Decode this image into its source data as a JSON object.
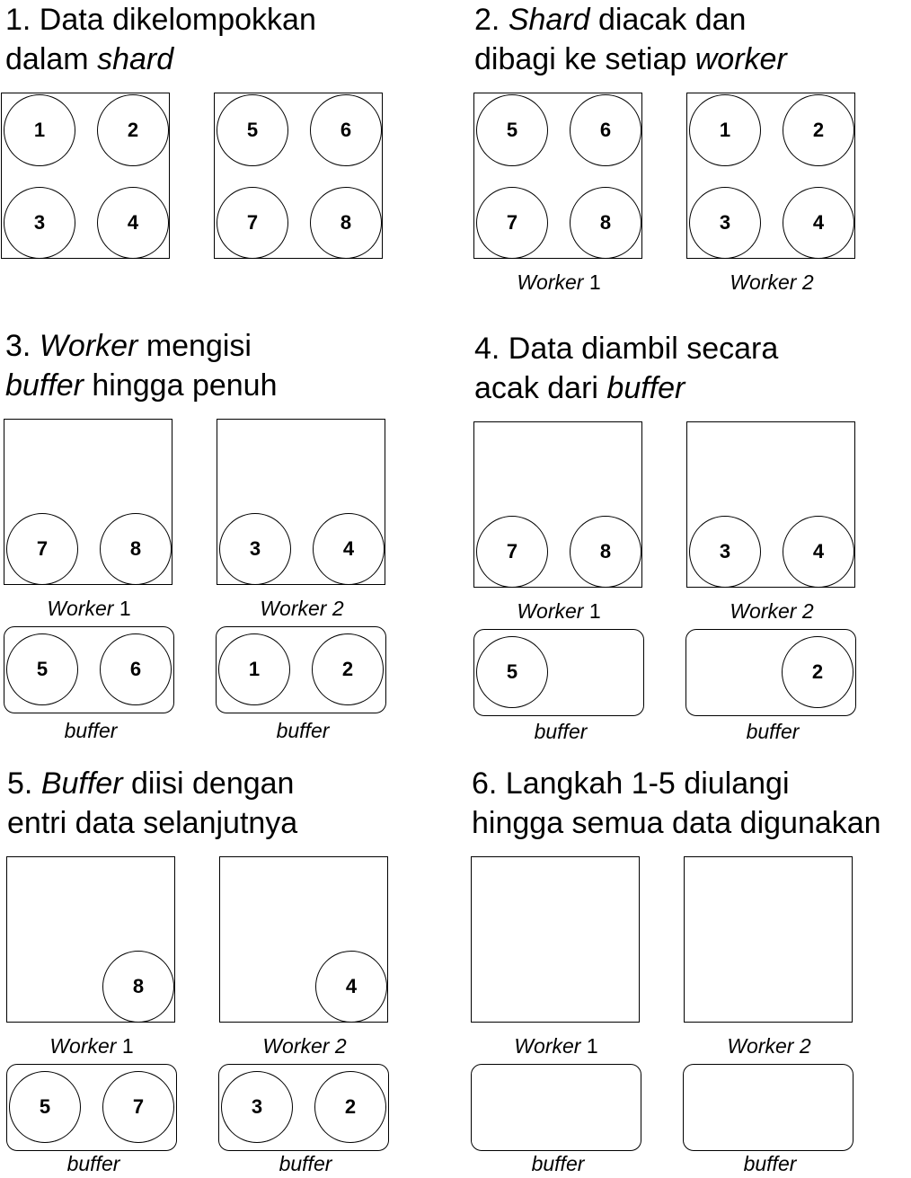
{
  "steps": [
    {
      "title": [
        {
          "t": "1. Data dikelompokkan",
          "i": false
        },
        {
          "br": true
        },
        {
          "t": "dalam ",
          "i": false
        },
        {
          "t": "shard",
          "i": true
        }
      ],
      "boxes": [
        [
          "1",
          "2",
          "3",
          "4"
        ],
        [
          "5",
          "6",
          "7",
          "8"
        ]
      ],
      "workerLabels": [],
      "buffers": [],
      "bufferLabel": ""
    },
    {
      "title": [
        {
          "t": "2. ",
          "i": false
        },
        {
          "t": "Shard",
          "i": true
        },
        {
          "t": " diacak dan",
          "i": false
        },
        {
          "br": true
        },
        {
          "t": "dibagi ke setiap ",
          "i": false
        },
        {
          "t": "worker",
          "i": true
        }
      ],
      "boxes": [
        [
          "5",
          "6",
          "7",
          "8"
        ],
        [
          "1",
          "2",
          "3",
          "4"
        ]
      ],
      "workerLabels": [
        [
          {
            "t": "Worker",
            "i": true
          },
          {
            "t": " 1",
            "i": false
          }
        ],
        [
          {
            "t": "Worker 2",
            "i": true
          }
        ]
      ],
      "buffers": [],
      "bufferLabel": ""
    },
    {
      "title": [
        {
          "t": "3. ",
          "i": false
        },
        {
          "t": "Worker",
          "i": true
        },
        {
          "t": " mengisi",
          "i": false
        },
        {
          "br": true
        },
        {
          "t": "buffer",
          "i": true
        },
        {
          "t": " hingga penuh",
          "i": false
        }
      ],
      "boxes": [
        [
          "",
          "",
          "7",
          "8"
        ],
        [
          "",
          "",
          "3",
          "4"
        ]
      ],
      "workerLabels": [
        [
          {
            "t": "Worker",
            "i": true
          },
          {
            "t": " 1",
            "i": false
          }
        ],
        [
          {
            "t": "Worker 2",
            "i": true
          }
        ]
      ],
      "buffers": [
        [
          "5",
          "6"
        ],
        [
          "1",
          "2"
        ]
      ],
      "bufferLabel": "buffer"
    },
    {
      "title": [
        {
          "t": "4. Data diambil secara",
          "i": false
        },
        {
          "br": true
        },
        {
          "t": "acak dari ",
          "i": false
        },
        {
          "t": "buffer",
          "i": true
        }
      ],
      "boxes": [
        [
          "",
          "",
          "7",
          "8"
        ],
        [
          "",
          "",
          "3",
          "4"
        ]
      ],
      "workerLabels": [
        [
          {
            "t": "Worker",
            "i": true
          },
          {
            "t": " 1",
            "i": false
          }
        ],
        [
          {
            "t": "Worker 2",
            "i": true
          }
        ]
      ],
      "buffers": [
        [
          "5",
          ""
        ],
        [
          "",
          "2"
        ]
      ],
      "bufferLabel": "buffer"
    },
    {
      "title": [
        {
          "t": "5. ",
          "i": false
        },
        {
          "t": "Buffer",
          "i": true
        },
        {
          "t": " diisi dengan",
          "i": false
        },
        {
          "br": true
        },
        {
          "t": "entri data selanjutnya",
          "i": false
        }
      ],
      "boxes": [
        [
          "",
          "",
          "",
          "8"
        ],
        [
          "",
          "",
          "",
          "4"
        ]
      ],
      "workerLabels": [
        [
          {
            "t": "Worker",
            "i": true
          },
          {
            "t": " 1",
            "i": false
          }
        ],
        [
          {
            "t": "Worker 2",
            "i": true
          }
        ]
      ],
      "buffers": [
        [
          "5",
          "7"
        ],
        [
          "3",
          "2"
        ]
      ],
      "bufferLabel": "buffer"
    },
    {
      "title": [
        {
          "t": "6. Langkah 1-5 diulangi",
          "i": false
        },
        {
          "br": true
        },
        {
          "t": "hingga semua data digunakan",
          "i": false
        }
      ],
      "boxes": [
        [
          "",
          "",
          "",
          ""
        ],
        [
          "",
          "",
          "",
          ""
        ]
      ],
      "workerLabels": [
        [
          {
            "t": "Worker",
            "i": true
          },
          {
            "t": " 1",
            "i": false
          }
        ],
        [
          {
            "t": "Worker 2",
            "i": true
          }
        ]
      ],
      "buffers": [
        [
          "",
          ""
        ],
        [
          "",
          ""
        ]
      ],
      "bufferLabel": "buffer"
    }
  ]
}
